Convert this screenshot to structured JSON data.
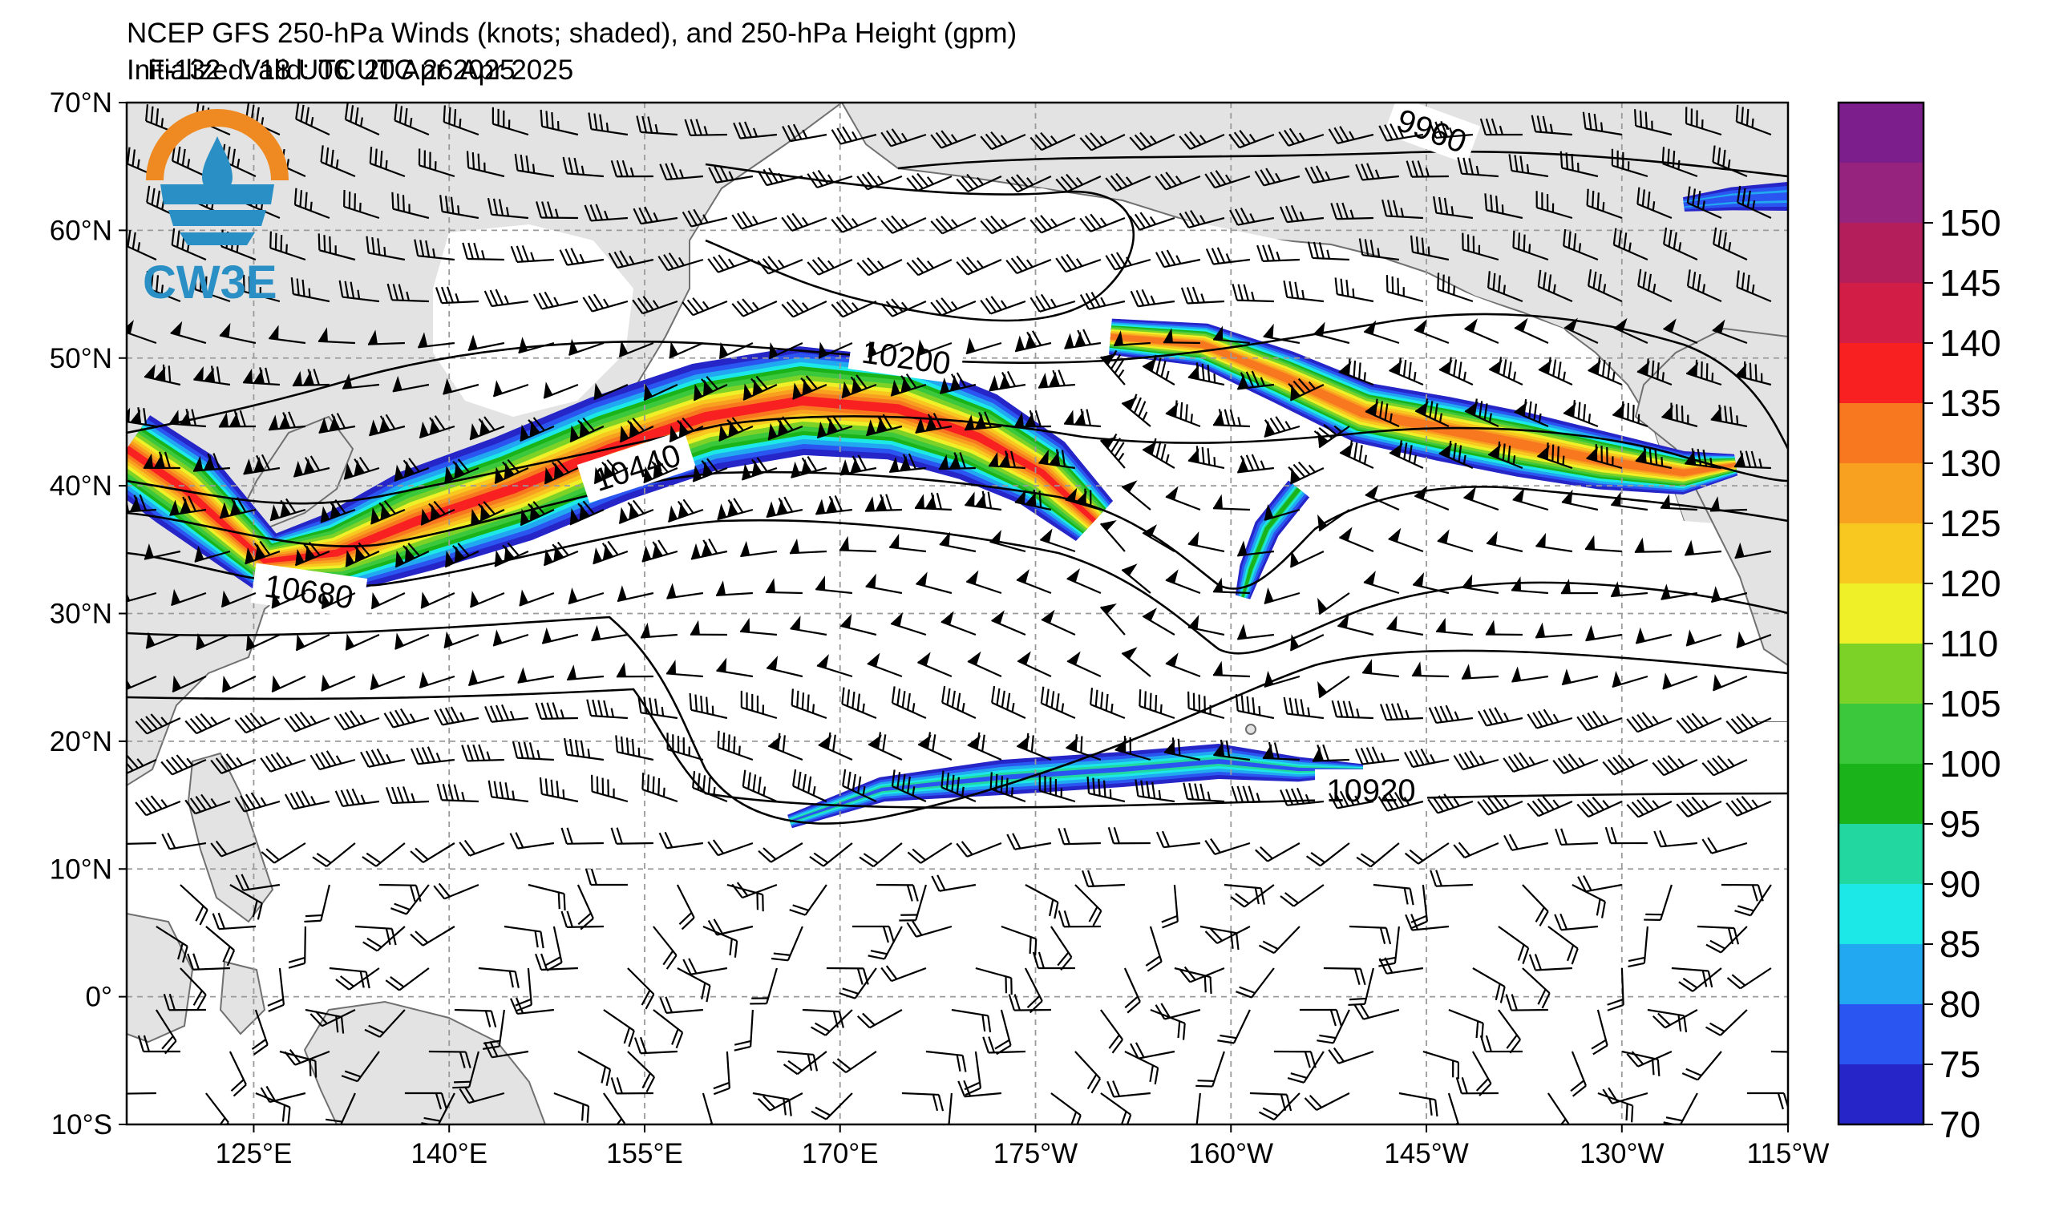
{
  "title": "NCEP GFS 250-hPa Winds (knots; shaded), and 250-hPa Height (gpm)",
  "initialized": "Initialized: 18 UTC 20 Apr 2025",
  "forecast_hour": "F-132",
  "valid": "Valid: 06 UTC 26 Apr 2025",
  "logo_text": "CW3E",
  "lat_labels": [
    "70°N",
    "60°N",
    "50°N",
    "40°N",
    "30°N",
    "20°N",
    "10°N",
    "0°",
    "10°S"
  ],
  "lon_labels": [
    "125°E",
    "140°E",
    "155°E",
    "170°E",
    "175°W",
    "160°W",
    "145°W",
    "130°W",
    "115°W"
  ],
  "contour_labels": [
    "9960",
    "10200",
    "10440",
    "10680",
    "10920"
  ],
  "colorbar": {
    "labels": [
      "70",
      "75",
      "80",
      "85",
      "90",
      "95",
      "100",
      "105",
      "110",
      "120",
      "125",
      "130",
      "135",
      "140",
      "145",
      "150"
    ],
    "colors": [
      "#2525c8",
      "#2b55f0",
      "#21a8f0",
      "#1de8e8",
      "#22d8a0",
      "#1ab41a",
      "#3cc83c",
      "#7dd228",
      "#f0f028",
      "#f8c820",
      "#f8a020",
      "#f87820",
      "#f82020",
      "#d21e46",
      "#b41e5a",
      "#96237d",
      "#7c1f8c"
    ]
  },
  "colors": {
    "land": "#e3e3e3",
    "coast": "#707070",
    "grid": "#9a9a9a",
    "contour": "#000000",
    "logo_orange": "#ef8a22",
    "logo_blue": "#2a8fc4"
  }
}
